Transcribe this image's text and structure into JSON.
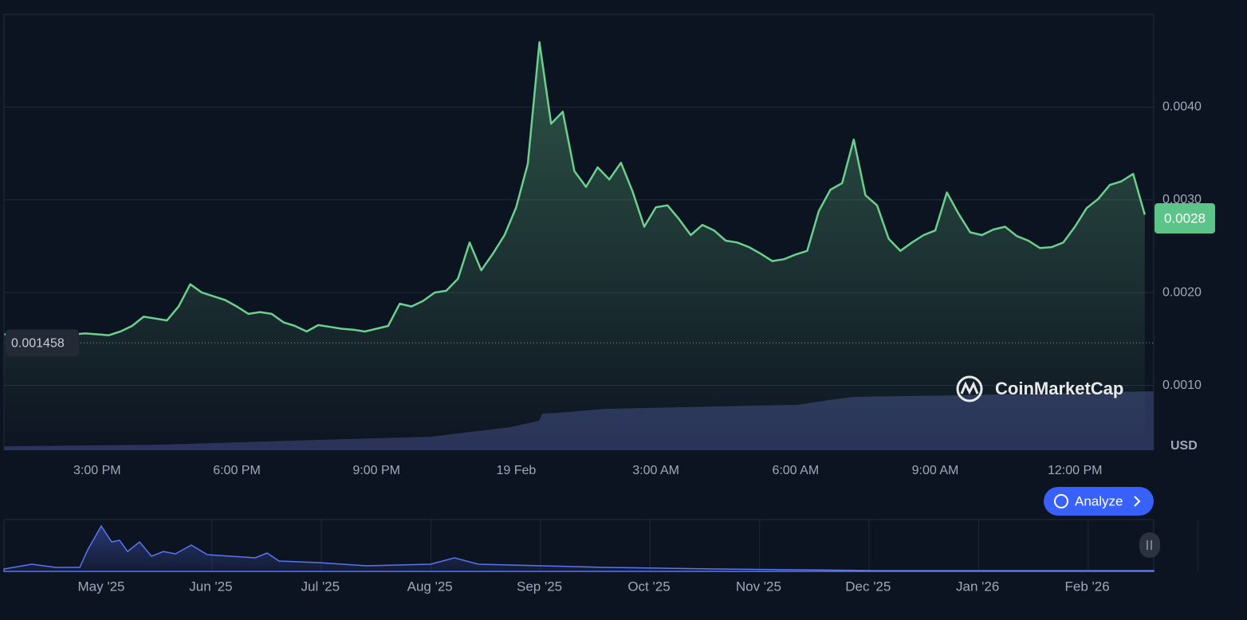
{
  "chart_data": {
    "type": "line",
    "values": [
      0.00155,
      0.00155,
      0.00155,
      0.00155,
      0.00155,
      0.00155,
      0.00155,
      0.00156,
      0.00155,
      0.00154,
      0.00158,
      0.00164,
      0.00174,
      0.00172,
      0.0017,
      0.00185,
      0.00209,
      0.002,
      0.00196,
      0.00192,
      0.00185,
      0.00177,
      0.00179,
      0.00177,
      0.00168,
      0.00164,
      0.00158,
      0.00165,
      0.00163,
      0.00161,
      0.0016,
      0.00158,
      0.00161,
      0.00164,
      0.00188,
      0.00185,
      0.00191,
      0.002,
      0.00202,
      0.00215,
      0.00254,
      0.00224,
      0.00242,
      0.00262,
      0.00292,
      0.00339,
      0.0047,
      0.00382,
      0.00395,
      0.00331,
      0.00314,
      0.00335,
      0.00322,
      0.0034,
      0.00309,
      0.00271,
      0.00292,
      0.00294,
      0.00279,
      0.00262,
      0.00273,
      0.00267,
      0.00256,
      0.00254,
      0.00249,
      0.00242,
      0.00234,
      0.00236,
      0.00241,
      0.00245,
      0.00288,
      0.00311,
      0.00318,
      0.00365,
      0.00305,
      0.00294,
      0.00258,
      0.00245,
      0.00254,
      0.00262,
      0.00267,
      0.00308,
      0.00285,
      0.00265,
      0.00262,
      0.00268,
      0.00271,
      0.00261,
      0.00256,
      0.00248,
      0.00249,
      0.00254,
      0.00271,
      0.00291,
      0.00301,
      0.00316,
      0.0032,
      0.00328,
      0.00284
    ],
    "color": "#6ccf8e",
    "xlim": [
      0,
      99
    ],
    "xticks": [
      {
        "value": 8,
        "label": "3:00 PM"
      },
      {
        "value": 20,
        "label": "6:00 PM"
      },
      {
        "value": 32,
        "label": "9:00 PM"
      },
      {
        "value": 44,
        "label": "19 Feb"
      },
      {
        "value": 56,
        "label": "3:00 AM"
      },
      {
        "value": 68,
        "label": "6:00 AM"
      },
      {
        "value": 80,
        "label": "9:00 AM"
      },
      {
        "value": 92,
        "label": "12:00 PM"
      }
    ],
    "ylim": [
      0.0003,
      0.005
    ],
    "yticks": [
      {
        "value": 0.001,
        "label": "0.0010"
      },
      {
        "value": 0.002,
        "label": "0.0020"
      },
      {
        "value": 0.003,
        "label": "0.0030"
      },
      {
        "value": 0.004,
        "label": "0.0040"
      }
    ],
    "grid": true,
    "y_unit": "USD",
    "last_price": 0.0028,
    "reference_price": 0.001458
  },
  "brand": "CoinMarketCap",
  "button": "Analyze",
  "navigator": {
    "labels": [
      "May '25",
      "Jun '25",
      "Jul '25",
      "Aug '25",
      "Sep '25",
      "Oct '25",
      "Nov '25",
      "Dec '25",
      "Jan '26",
      "Feb '26"
    ]
  }
}
